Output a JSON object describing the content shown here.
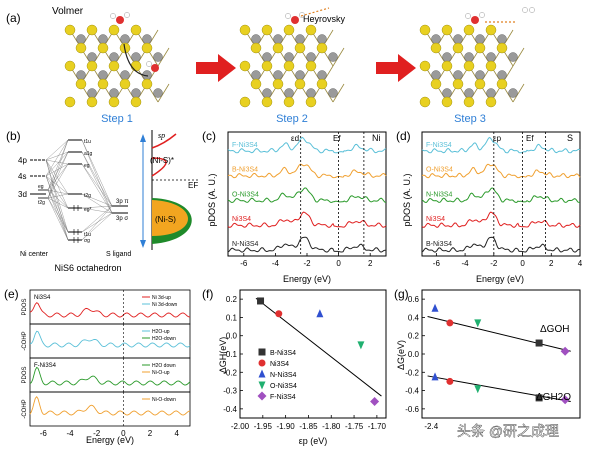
{
  "panel_a": {
    "label": "(a)",
    "steps": [
      "Step 1",
      "Step 2",
      "Step 3"
    ],
    "reactions": [
      "Volmer",
      "Heyrovsky"
    ],
    "colors": {
      "step_label": "#2f7fd6",
      "arrow": "#e02020",
      "s_atom": "#e8d020",
      "ni_atom": "#9a9a9a",
      "o_atom": "#e03030"
    }
  },
  "panel_b": {
    "label": "(b)",
    "left_levels": [
      "4p",
      "4s",
      "3d"
    ],
    "d_sub": [
      "eg",
      "t2g"
    ],
    "right_levels": [
      "3p π",
      "3p σ"
    ],
    "mo_labels": [
      "t1u",
      "a1g",
      "eg",
      "t2g",
      "eg*",
      "σg",
      "t1u"
    ],
    "ni_center": "Ni center",
    "s_ligand": "S ligand",
    "title": "NiS6 octahedron",
    "band_labels": [
      "sp",
      "(Ni-S)*",
      "EF",
      "(Ni-S)"
    ]
  },
  "panel_c": {
    "label": "(c)",
    "series": [
      "F-Ni3S4",
      "B-Ni3S4",
      "O-Ni3S4",
      "Ni3S4",
      "N-Ni3S4"
    ],
    "colors": [
      "#5bc0d8",
      "#f0a030",
      "#2a9a2a",
      "#e02020",
      "#222222"
    ],
    "element": "Ni",
    "markers": [
      "εd",
      "Ef"
    ],
    "xlabel": "Energy (eV)",
    "ylabel": "pDOS (A. U.)",
    "xticks": [
      "-6",
      "-4",
      "-2",
      "0",
      "2"
    ]
  },
  "panel_d": {
    "label": "(d)",
    "series": [
      "F-Ni3S4",
      "O-Ni3S4",
      "N-Ni3S4",
      "Ni3S4",
      "B-Ni3S4"
    ],
    "colors": [
      "#5bc0d8",
      "#f0a030",
      "#2a9a2a",
      "#e02020",
      "#222222"
    ],
    "element": "S",
    "markers": [
      "εp",
      "Ef"
    ],
    "xlabel": "Energy (eV)",
    "ylabel": "pDOS (A. U.)",
    "xticks": [
      "-6",
      "-4",
      "-2",
      "0",
      "2",
      "4"
    ]
  },
  "panel_e": {
    "label": "(e)",
    "rows": [
      {
        "ylabel": "PDOS",
        "tag": "Ni3S4",
        "legend": [
          "Ni 3d-up",
          "Ni 3d-down"
        ]
      },
      {
        "ylabel": "-COHP",
        "tag": "",
        "legend": [
          "H2O-up",
          "H2O-down"
        ]
      },
      {
        "ylabel": "PDOS",
        "tag": "F-Ni3S4",
        "legend": [
          "H2O down",
          "Ni-O-up"
        ]
      },
      {
        "ylabel": "-COHP",
        "tag": "",
        "legend": [
          "Ni-O-down"
        ]
      }
    ],
    "xlabel": "Energy (eV)",
    "xticks": [
      "-6",
      "-4",
      "-2",
      "0",
      "2",
      "4"
    ]
  },
  "chart_data": [
    {
      "panel": "(f)",
      "type": "scatter",
      "xlabel": "εp (eV)",
      "ylabel": "ΔGH(eV)",
      "xlim": [
        -2.0,
        -1.68
      ],
      "ylim": [
        -0.45,
        0.25
      ],
      "xticks": [
        -2.0,
        -1.95,
        -1.9,
        -1.85,
        -1.8,
        -1.75,
        -1.7
      ],
      "yticks": [
        -0.4,
        -0.3,
        -0.2,
        -0.1,
        0.0,
        0.1,
        0.2
      ],
      "series": [
        {
          "name": "B-Ni3S4",
          "x": [
            -1.955
          ],
          "y": [
            0.19
          ],
          "color": "#333333",
          "marker": "square"
        },
        {
          "name": "Ni3S4",
          "x": [
            -1.915
          ],
          "y": [
            0.12
          ],
          "color": "#e03030",
          "marker": "circle"
        },
        {
          "name": "N-Ni3S4",
          "x": [
            -1.825
          ],
          "y": [
            0.12
          ],
          "color": "#3050d0",
          "marker": "triangle-up"
        },
        {
          "name": "O-Ni3S4",
          "x": [
            -1.735
          ],
          "y": [
            -0.05
          ],
          "color": "#20b070",
          "marker": "triangle-down"
        },
        {
          "name": "F-Ni3S4",
          "x": [
            -1.705
          ],
          "y": [
            -0.36
          ],
          "color": "#a050c0",
          "marker": "diamond"
        }
      ],
      "fit": {
        "x": [
          -1.965,
          -1.69
        ],
        "y": [
          0.205,
          -0.33
        ]
      }
    },
    {
      "panel": "(g)",
      "type": "scatter",
      "xlabel": "",
      "ylabel": "ΔG(eV)",
      "xlim": [
        -2.45,
        -1.6
      ],
      "ylim": [
        -0.7,
        0.7
      ],
      "xticks": [
        -2.4
      ],
      "yticks": [
        -0.6,
        -0.4,
        -0.2,
        0.0,
        0.2,
        0.4,
        0.6
      ],
      "annotations": [
        "ΔGOH",
        "ΔGH2O"
      ],
      "series": [
        {
          "name": "OH",
          "x": [
            -2.38,
            -2.3,
            -2.15,
            -1.82,
            -1.68
          ],
          "y": [
            0.5,
            0.34,
            0.34,
            0.12,
            0.03
          ],
          "colors": [
            "#3050d0",
            "#e03030",
            "#20b070",
            "#333333",
            "#a050c0"
          ],
          "markers": [
            "triangle-up",
            "circle",
            "triangle-down",
            "square",
            "diamond"
          ]
        },
        {
          "name": "H2O",
          "x": [
            -2.38,
            -2.3,
            -2.15,
            -1.82,
            -1.68
          ],
          "y": [
            -0.25,
            -0.3,
            -0.38,
            -0.48,
            -0.5
          ],
          "colors": [
            "#3050d0",
            "#e03030",
            "#20b070",
            "#333333",
            "#a050c0"
          ],
          "markers": [
            "triangle-up",
            "circle",
            "triangle-down",
            "square",
            "diamond"
          ]
        }
      ],
      "fits": [
        {
          "x": [
            -2.42,
            -1.65
          ],
          "y": [
            0.41,
            0.03
          ]
        },
        {
          "x": [
            -2.42,
            -1.65
          ],
          "y": [
            -0.24,
            -0.52
          ]
        }
      ]
    }
  ],
  "watermark": "头条 @研之成理"
}
